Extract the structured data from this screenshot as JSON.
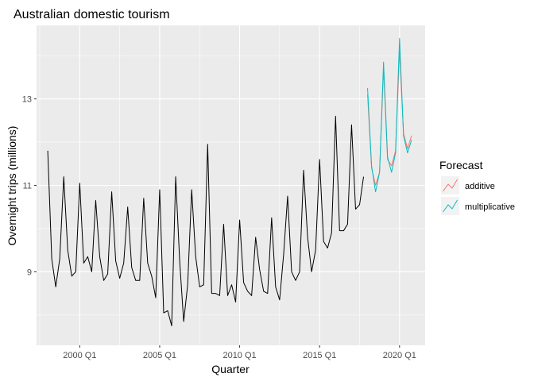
{
  "chart_data": {
    "type": "line",
    "title": "Australian domestic tourism",
    "xlabel": "Quarter",
    "ylabel": "Overnight trips (millions)",
    "x_ticks": [
      "2000 Q1",
      "2005 Q1",
      "2010 Q1",
      "2015 Q1",
      "2020 Q1"
    ],
    "y_ticks": [
      9,
      11,
      13
    ],
    "xlim": [
      1997.3,
      2021.6
    ],
    "ylim": [
      7.3,
      14.7
    ],
    "grid": true,
    "legend": {
      "title": "Forecast",
      "position": "right",
      "entries": [
        {
          "name": "additive",
          "color": "#F8766D"
        },
        {
          "name": "multiplicative",
          "color": "#00BFC4"
        }
      ]
    },
    "series": [
      {
        "name": "",
        "color": "#000000",
        "start": "1998 Q1",
        "values": [
          11.8,
          9.3,
          8.65,
          9.3,
          11.2,
          9.5,
          8.9,
          9.0,
          11.05,
          9.2,
          9.35,
          9.0,
          10.65,
          9.35,
          8.8,
          8.95,
          10.85,
          9.25,
          8.85,
          9.2,
          10.5,
          9.1,
          8.8,
          8.8,
          10.7,
          9.2,
          8.9,
          8.4,
          10.9,
          8.05,
          8.1,
          7.75,
          11.2,
          9.25,
          7.85,
          8.7,
          10.9,
          9.35,
          8.65,
          8.7,
          11.95,
          8.5,
          8.5,
          8.45,
          10.1,
          8.45,
          8.7,
          8.3,
          10.2,
          8.75,
          8.55,
          8.45,
          9.8,
          9.05,
          8.55,
          8.5,
          10.25,
          8.65,
          8.35,
          9.4,
          10.75,
          9.0,
          8.8,
          9.0,
          11.35,
          9.8,
          9.0,
          9.5,
          11.6,
          9.7,
          9.55,
          9.9,
          12.6,
          9.95,
          9.95,
          10.1,
          12.4,
          10.45,
          10.55,
          11.2
        ]
      },
      {
        "name": "additive",
        "color": "#F8766D",
        "start": "2018 Q1",
        "values": [
          13.1,
          11.4,
          11.0,
          11.3,
          13.7,
          11.6,
          11.45,
          11.8,
          14.1,
          12.2,
          11.85,
          12.15
        ]
      },
      {
        "name": "multiplicative",
        "color": "#00BFC4",
        "start": "2018 Q1",
        "values": [
          13.25,
          11.45,
          10.85,
          11.3,
          13.85,
          11.65,
          11.3,
          11.75,
          14.4,
          12.15,
          11.75,
          12.05
        ]
      }
    ]
  }
}
